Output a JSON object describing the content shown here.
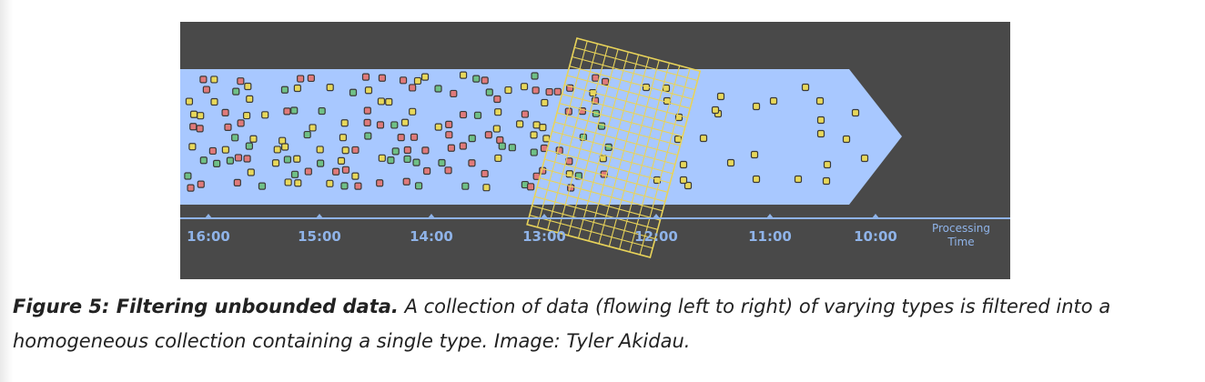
{
  "figure": {
    "axis": {
      "ticks": [
        "16:00",
        "15:00",
        "14:00",
        "13:00",
        "12:00",
        "11:00",
        "10:00"
      ],
      "label_line1": "Processing",
      "label_line2": "Time"
    },
    "colors": {
      "background": "#494949",
      "stream": "#a8c8ff",
      "axis": "#8fb3e8",
      "grid": "#e8d35a",
      "red_item": "#e07a7a",
      "yellow_item": "#e8d85a",
      "green_item": "#6fc086"
    },
    "item_types": [
      "red",
      "yellow",
      "green"
    ],
    "filter": {
      "kept_type": "yellow"
    }
  },
  "caption": {
    "title": "Figure 5: Filtering unbounded data.",
    "text": " A collection of data (flowing left to right) of varying types is filtered into a homogeneous collection containing a single type. Image: Tyler Akidau."
  }
}
